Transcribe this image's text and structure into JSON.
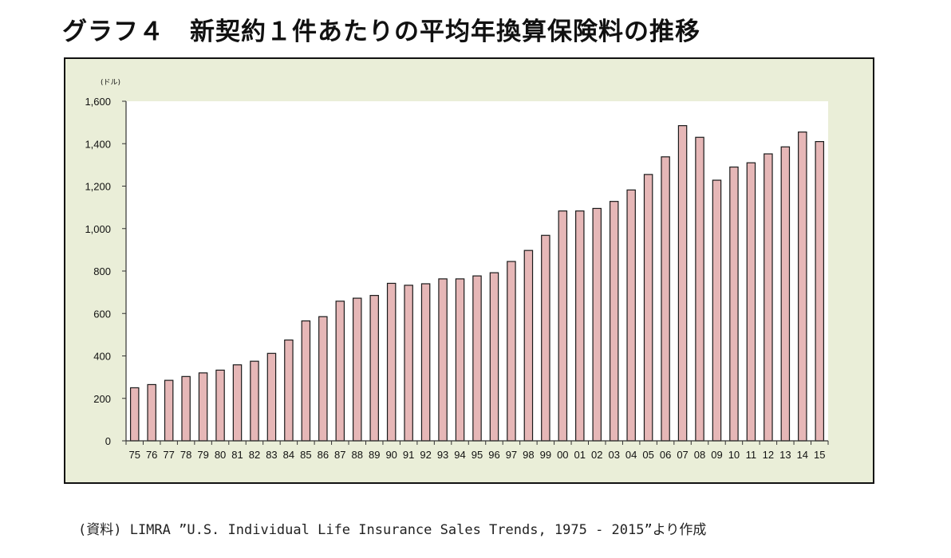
{
  "title": "グラフ４　新契約１件あたりの平均年換算保険料の推移",
  "source": "(資料) LIMRA ”U.S. Individual Life Insurance Sales Trends, 1975 - 2015”より作成",
  "colors": {
    "bar_fill": "#e6b7b7",
    "bar_stroke": "#1a1a1a",
    "frame_bg": "#eaeed8",
    "plot_bg": "#ffffff"
  },
  "chart_data": {
    "type": "bar",
    "unit": "(ドル)",
    "categories": [
      "75",
      "76",
      "77",
      "78",
      "79",
      "80",
      "81",
      "82",
      "83",
      "84",
      "85",
      "86",
      "87",
      "88",
      "89",
      "90",
      "91",
      "92",
      "93",
      "94",
      "95",
      "96",
      "97",
      "98",
      "99",
      "00",
      "01",
      "02",
      "03",
      "04",
      "05",
      "06",
      "07",
      "08",
      "09",
      "10",
      "11",
      "12",
      "13",
      "14",
      "15"
    ],
    "values": [
      250,
      265,
      285,
      303,
      320,
      333,
      358,
      375,
      412,
      475,
      565,
      585,
      658,
      672,
      685,
      742,
      733,
      740,
      763,
      763,
      777,
      792,
      845,
      897,
      968,
      1083,
      1083,
      1095,
      1128,
      1182,
      1255,
      1338,
      1485,
      1430,
      1228,
      1290,
      1310,
      1352,
      1385,
      1455,
      1410
    ],
    "ylim": [
      0,
      1600
    ],
    "yticks": [
      0,
      200,
      400,
      600,
      800,
      1000,
      1200,
      1400,
      1600
    ],
    "ytick_labels": [
      "0",
      "200",
      "400",
      "600",
      "800",
      "1,000",
      "1,200",
      "1,400",
      "1,600"
    ],
    "grid": false,
    "legend": "none"
  }
}
